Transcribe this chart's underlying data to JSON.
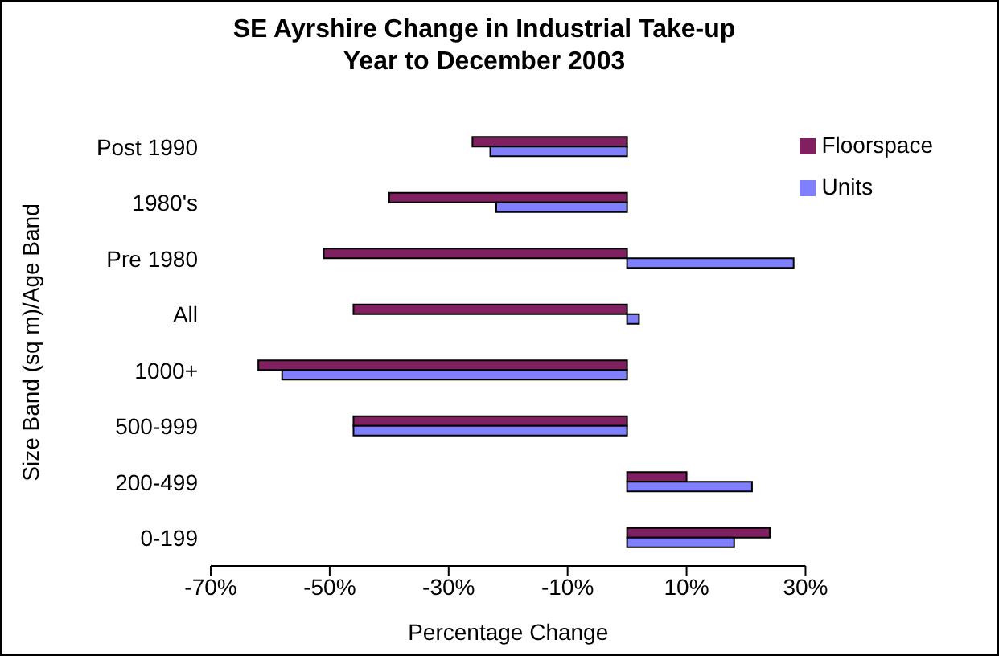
{
  "chart_data": {
    "type": "bar",
    "orientation": "horizontal",
    "title": "SE Ayrshire Change in Industrial Take-up",
    "subtitle": "Year to December 2003",
    "xlabel": "Percentage Change",
    "ylabel": "Size Band (sq m)/Age Band",
    "categories": [
      "Post 1990",
      "1980's",
      "Pre 1980",
      "All",
      "1000+",
      "500-999",
      "200-499",
      "0-199"
    ],
    "series": [
      {
        "name": "Floorspace",
        "color": "#802060",
        "values": [
          -26,
          -40,
          -51,
          -46,
          -62,
          -46,
          10,
          24
        ]
      },
      {
        "name": "Units",
        "color": "#8080ff",
        "values": [
          -23,
          -22,
          28,
          2,
          -58,
          -46,
          21,
          18
        ]
      }
    ],
    "xlim": [
      -70,
      30
    ],
    "xticks": [
      {
        "value": -70,
        "label": "-70%"
      },
      {
        "value": -50,
        "label": "-50%"
      },
      {
        "value": -30,
        "label": "-30%"
      },
      {
        "value": -10,
        "label": "-10%"
      },
      {
        "value": 10,
        "label": "10%"
      },
      {
        "value": 30,
        "label": "30%"
      }
    ],
    "grid": false,
    "legend": "top right"
  }
}
